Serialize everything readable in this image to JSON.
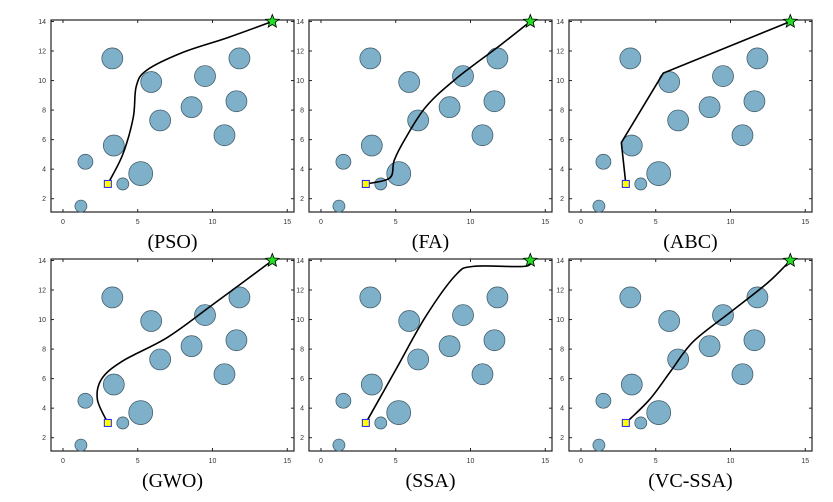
{
  "chart_data": {
    "type": "scatter",
    "xlim": [
      -0.8,
      15.45
    ],
    "ylim": [
      1.1,
      14.1
    ],
    "xticks": [
      "0",
      "5",
      "10",
      "15"
    ],
    "yticks": [
      "2",
      "4",
      "6",
      "8",
      "10",
      "12",
      "14"
    ],
    "start": [
      3,
      3
    ],
    "goal": [
      14,
      14
    ],
    "colors": {
      "obstacle": "#7fb0c9",
      "obstacle_edge": "#44606e",
      "path": "#000000",
      "start_fill": "#ffff00",
      "start_edge": "#2222ff",
      "goal_fill": "#22dd22"
    },
    "obstacles": [
      {
        "x": 1.2,
        "y": 1.5,
        "r": 0.4
      },
      {
        "x": 1.5,
        "y": 4.5,
        "r": 0.5
      },
      {
        "x": 3.3,
        "y": 11.5,
        "r": 0.7
      },
      {
        "x": 3.4,
        "y": 5.6,
        "r": 0.7
      },
      {
        "x": 4.0,
        "y": 3.0,
        "r": 0.4
      },
      {
        "x": 5.2,
        "y": 3.7,
        "r": 0.8
      },
      {
        "x": 5.9,
        "y": 9.9,
        "r": 0.7
      },
      {
        "x": 6.5,
        "y": 7.3,
        "r": 0.7
      },
      {
        "x": 8.6,
        "y": 8.2,
        "r": 0.7
      },
      {
        "x": 9.5,
        "y": 10.3,
        "r": 0.7
      },
      {
        "x": 10.8,
        "y": 6.3,
        "r": 0.7
      },
      {
        "x": 11.6,
        "y": 8.6,
        "r": 0.7
      },
      {
        "x": 11.8,
        "y": 11.5,
        "r": 0.7
      }
    ],
    "panels": [
      {
        "caption": "(PSO)",
        "smooth": true,
        "path": [
          [
            3,
            3
          ],
          [
            4,
            5
          ],
          [
            4.7,
            7.5
          ],
          [
            4.9,
            9.6
          ],
          [
            5.6,
            10.7
          ],
          [
            8,
            11.9
          ],
          [
            11,
            12.9
          ],
          [
            14,
            14
          ]
        ]
      },
      {
        "caption": "(FA)",
        "smooth": true,
        "path": [
          [
            3,
            3
          ],
          [
            4.6,
            3.4
          ],
          [
            4.9,
            4.6
          ],
          [
            5.6,
            6
          ],
          [
            7,
            8.2
          ],
          [
            9,
            10.1
          ],
          [
            12,
            12.4
          ],
          [
            14,
            14
          ]
        ]
      },
      {
        "caption": "(ABC)",
        "smooth": false,
        "path": [
          [
            3,
            3
          ],
          [
            2.7,
            5.8
          ],
          [
            5.5,
            10.5
          ],
          [
            14,
            14
          ]
        ]
      },
      {
        "caption": "(GWO)",
        "smooth": true,
        "path": [
          [
            3,
            3
          ],
          [
            2.3,
            4.6
          ],
          [
            2.6,
            6
          ],
          [
            4,
            7.2
          ],
          [
            7,
            8.8
          ],
          [
            10,
            11
          ],
          [
            14,
            14
          ]
        ]
      },
      {
        "caption": "(SSA)",
        "smooth": true,
        "path": [
          [
            3,
            3
          ],
          [
            5,
            6.6
          ],
          [
            7,
            10.2
          ],
          [
            9,
            13
          ],
          [
            10.2,
            13.6
          ],
          [
            13.6,
            13.6
          ],
          [
            14,
            14
          ]
        ]
      },
      {
        "caption": "(VC-SSA)",
        "smooth": true,
        "path": [
          [
            3,
            3
          ],
          [
            4.6,
            4.6
          ],
          [
            6,
            6.5
          ],
          [
            7.5,
            8.5
          ],
          [
            10,
            10.5
          ],
          [
            12.5,
            12.5
          ],
          [
            14,
            14
          ]
        ]
      }
    ]
  }
}
